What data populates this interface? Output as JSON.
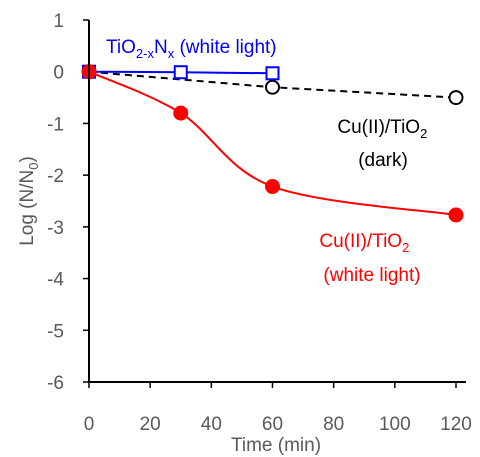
{
  "chart_data": {
    "type": "scatter",
    "xlabel": "Time (min)",
    "ylabel": "Log (N/N0)",
    "xlim": [
      0,
      120
    ],
    "ylim": [
      -6,
      1
    ],
    "xticks": [
      0,
      20,
      40,
      60,
      80,
      100,
      120
    ],
    "yticks": [
      1,
      0,
      -1,
      -2,
      -3,
      -4,
      -5,
      -6
    ],
    "grid": false,
    "series": [
      {
        "name": "Cu(II)/TiO2 (white light)",
        "color": "#ff0000",
        "marker": "filled-circle",
        "line": "smooth-solid",
        "x": [
          0,
          30,
          60,
          120
        ],
        "y": [
          0,
          -0.8,
          -2.22,
          -2.77
        ]
      },
      {
        "name": "Cu(II)/TiO2 (dark)",
        "color": "#000000",
        "marker": "open-circle",
        "line": "dashed",
        "x": [
          0,
          60,
          120
        ],
        "y": [
          0,
          -0.3,
          -0.5
        ]
      },
      {
        "name": "TiO2-xNx (white light)",
        "color": "#0000ff",
        "marker": "open-square",
        "line": "solid",
        "x": [
          0,
          30,
          60
        ],
        "y": [
          0,
          -0.01,
          -0.03
        ]
      }
    ],
    "annotations": {
      "tio2n": {
        "base": "TiO",
        "sub1": "2-x",
        "mid": "N",
        "sub2": "x",
        "rest": " (white light)"
      },
      "cu_dark": {
        "line1": "Cu(II)/TiO",
        "line1_sub": "2",
        "line2": "(dark)"
      },
      "cu_white": {
        "line1": "Cu(II)/TiO",
        "line1_sub": "2",
        "line2": "(white light)"
      }
    },
    "ylabel_parts": {
      "main": "Log (N/N",
      "sub": "0",
      "close": ")"
    }
  }
}
